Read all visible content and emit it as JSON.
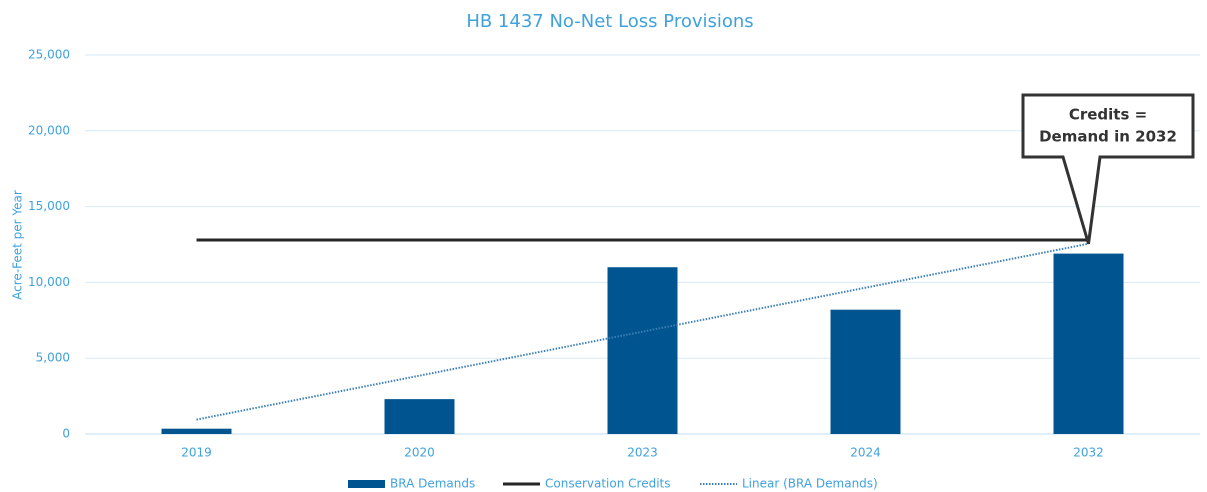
{
  "chart_data": {
    "type": "bar",
    "title": "HB 1437 No-Net Loss Provisions",
    "y_label": "Acre-Feet per Year",
    "categories": [
      "2019",
      "2020",
      "2023",
      "2024",
      "2032"
    ],
    "series": [
      {
        "name": "BRA Demands",
        "type": "bar",
        "color": "#00548f",
        "values": [
          350,
          2300,
          11000,
          8200,
          11900
        ]
      },
      {
        "name": "Conservation Credits",
        "type": "line",
        "color": "#262626",
        "line_style": "solid",
        "values": [
          12800,
          12800,
          12800,
          12800,
          12800
        ]
      },
      {
        "name": "Linear (BRA Demands)",
        "type": "line",
        "color": "#3b7fb8",
        "line_style": "dotted",
        "values": [
          950,
          3850,
          6750,
          9650,
          12550
        ]
      }
    ],
    "ylim": [
      0,
      25000
    ],
    "yticks": [
      0,
      {
        "value": 5000,
        "label": "5,000"
      },
      {
        "value": 10000,
        "label": "10,000"
      },
      {
        "value": 15000,
        "label": "15,000"
      },
      {
        "value": 20000,
        "label": "20,000"
      },
      {
        "value": 25000,
        "label": "25,000"
      }
    ],
    "grid": true,
    "legend": "bottom",
    "annotation": [
      "Credits =",
      "Demand in 2032"
    ]
  }
}
